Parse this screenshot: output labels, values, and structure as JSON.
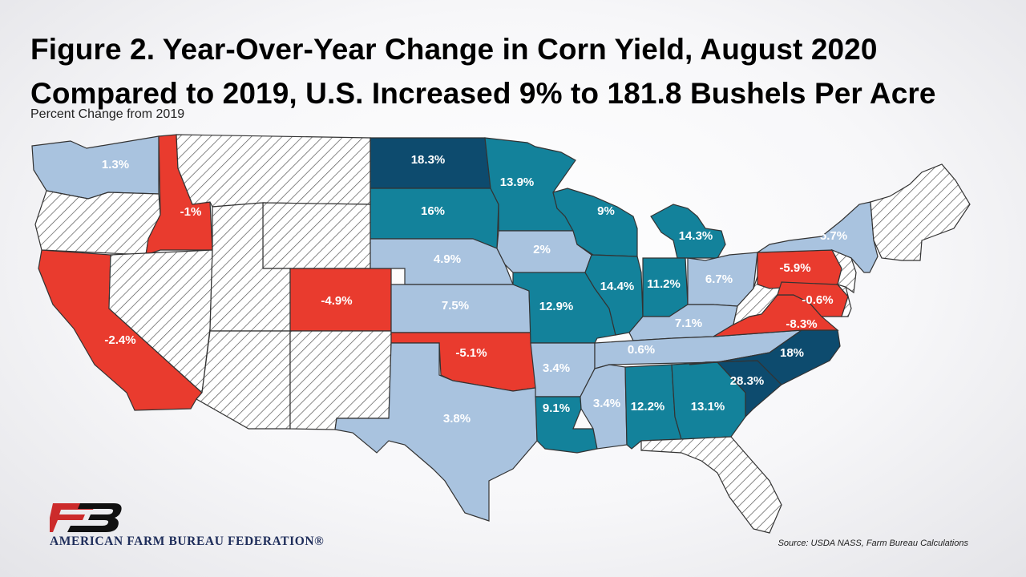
{
  "title_line1": "Figure 2. Year-Over-Year Change in Corn Yield, August 2020",
  "title_line2": "Compared to 2019, U.S. Increased 9% to 181.8 Bushels Per Acre",
  "subtitle": "Percent Change from 2019",
  "colors": {
    "decrease": "#e93b2e",
    "increase_small": "#a9c3df",
    "increase_medium": "#13829b",
    "increase_large": "#0d4b6e",
    "no_data": "hatched-white"
  },
  "states": [
    {
      "state": "Washington",
      "value": "1.3%"
    },
    {
      "state": "Oregon",
      "value": null
    },
    {
      "state": "California",
      "value": "-2.4%"
    },
    {
      "state": "Idaho",
      "value": "-1%"
    },
    {
      "state": "Nevada",
      "value": null
    },
    {
      "state": "Montana",
      "value": null
    },
    {
      "state": "Wyoming",
      "value": null
    },
    {
      "state": "Utah",
      "value": null
    },
    {
      "state": "Arizona",
      "value": null
    },
    {
      "state": "Colorado",
      "value": "-4.9%"
    },
    {
      "state": "New Mexico",
      "value": null
    },
    {
      "state": "North Dakota",
      "value": "18.3%"
    },
    {
      "state": "South Dakota",
      "value": "16%"
    },
    {
      "state": "Nebraska",
      "value": "4.9%"
    },
    {
      "state": "Kansas",
      "value": "7.5%"
    },
    {
      "state": "Oklahoma",
      "value": "-5.1%"
    },
    {
      "state": "Texas",
      "value": "3.8%"
    },
    {
      "state": "Minnesota",
      "value": "13.9%"
    },
    {
      "state": "Iowa",
      "value": "2%"
    },
    {
      "state": "Missouri",
      "value": "12.9%"
    },
    {
      "state": "Arkansas",
      "value": "3.4%"
    },
    {
      "state": "Louisiana",
      "value": "9.1%"
    },
    {
      "state": "Wisconsin",
      "value": "9%"
    },
    {
      "state": "Illinois",
      "value": "14.4%"
    },
    {
      "state": "Michigan",
      "value": "14.3%"
    },
    {
      "state": "Indiana",
      "value": "11.2%"
    },
    {
      "state": "Ohio",
      "value": "6.7%"
    },
    {
      "state": "Kentucky",
      "value": "7.1%"
    },
    {
      "state": "Tennessee",
      "value": "0.6%"
    },
    {
      "state": "Mississippi",
      "value": "3.4%"
    },
    {
      "state": "Alabama",
      "value": "12.2%"
    },
    {
      "state": "Georgia",
      "value": "13.1%"
    },
    {
      "state": "Florida",
      "value": null
    },
    {
      "state": "South Carolina",
      "value": "28.3%"
    },
    {
      "state": "North Carolina",
      "value": "18%"
    },
    {
      "state": "Virginia",
      "value": "-8.3%"
    },
    {
      "state": "West Virginia",
      "value": null
    },
    {
      "state": "Pennsylvania",
      "value": "-5.9%"
    },
    {
      "state": "New York",
      "value": "5.7%"
    },
    {
      "state": "Maryland",
      "value": "-0.6%"
    },
    {
      "state": "Delaware",
      "value": null
    },
    {
      "state": "New Jersey",
      "value": null
    },
    {
      "state": "New England",
      "value": null
    }
  ],
  "logo_letters": "FB",
  "organization": "AMERICAN FARM BUREAU FEDERATION®",
  "source": "Source:  USDA  NASS, Farm Bureau Calculations"
}
